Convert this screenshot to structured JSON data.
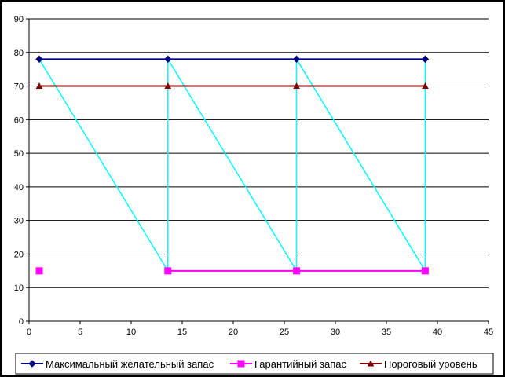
{
  "chart_data": {
    "type": "scatter",
    "xlim": [
      0,
      45
    ],
    "ylim": [
      0,
      90
    ],
    "x_ticks": [
      "0",
      "5",
      "10",
      "15",
      "20",
      "25",
      "30",
      "35",
      "40",
      "45"
    ],
    "y_ticks": [
      "0",
      "10",
      "20",
      "30",
      "40",
      "50",
      "60",
      "70",
      "80",
      "90"
    ],
    "grid": "horizontal",
    "legend_position": "bottom",
    "series": [
      {
        "name": "Максимальный желательный запас",
        "color": "#000080",
        "marker": "diamond",
        "points": [
          [
            1,
            78
          ],
          [
            13.6,
            78
          ],
          [
            26.2,
            78
          ],
          [
            38.8,
            78
          ]
        ]
      },
      {
        "name": "Гарантийный запас",
        "color": "#ff00ff",
        "marker": "square",
        "points": [
          [
            1,
            15
          ],
          [
            13.6,
            15
          ],
          [
            26.2,
            15
          ],
          [
            38.8,
            15
          ]
        ]
      },
      {
        "name": "Пороговый уровень",
        "color": "#800000",
        "marker": "triangle",
        "points": [
          [
            1,
            70
          ],
          [
            13.6,
            70
          ],
          [
            26.2,
            70
          ],
          [
            38.8,
            70
          ]
        ]
      },
      {
        "name": "",
        "color": "#00ffff",
        "marker": "none",
        "points": [
          [
            1,
            78
          ],
          [
            13.6,
            15
          ],
          [
            13.6,
            78
          ],
          [
            26.2,
            15
          ],
          [
            26.2,
            78
          ],
          [
            38.8,
            15
          ],
          [
            38.8,
            78
          ]
        ]
      }
    ]
  }
}
